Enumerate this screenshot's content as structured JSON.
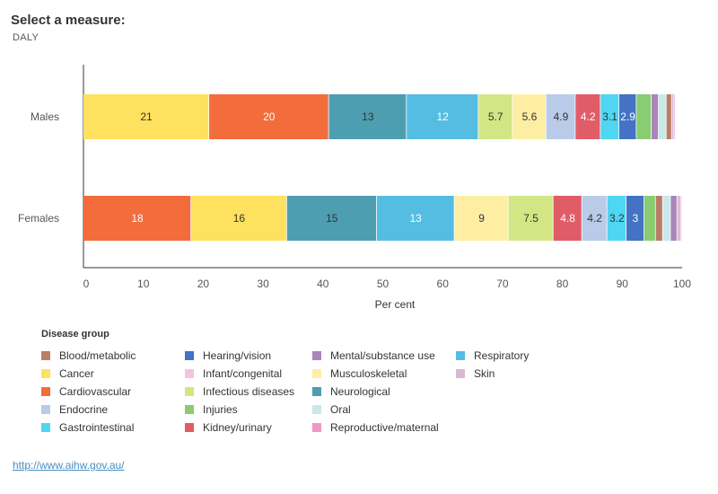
{
  "header": {
    "title": "Select a measure:",
    "measure": "DALY"
  },
  "legend": {
    "title": "Disease group",
    "items": [
      {
        "label": "Blood/metabolic",
        "color": "#b87e66"
      },
      {
        "label": "Cancer",
        "color": "#fde15f"
      },
      {
        "label": "Cardiovascular",
        "color": "#f26c3c"
      },
      {
        "label": "Endocrine",
        "color": "#b9cbe9"
      },
      {
        "label": "Gastrointestinal",
        "color": "#4fd6f2"
      },
      {
        "label": "Hearing/vision",
        "color": "#4472c4"
      },
      {
        "label": "Infant/congenital",
        "color": "#f3c4dd"
      },
      {
        "label": "Infectious diseases",
        "color": "#d2e784"
      },
      {
        "label": "Injuries",
        "color": "#89cc72"
      },
      {
        "label": "Kidney/urinary",
        "color": "#e05d68"
      },
      {
        "label": "Mental/substance use",
        "color": "#a986ba"
      },
      {
        "label": "Musculoskeletal",
        "color": "#fdeea4"
      },
      {
        "label": "Neurological",
        "color": "#4e9eb1"
      },
      {
        "label": "Oral",
        "color": "#c7e9ea"
      },
      {
        "label": "Reproductive/maternal",
        "color": "#ef98c4"
      },
      {
        "label": "Respiratory",
        "color": "#56bde2"
      },
      {
        "label": "Skin",
        "color": "#dab8d3"
      }
    ]
  },
  "footer": {
    "link": "http://www.aihw.gov.au/"
  },
  "chart_data": {
    "type": "bar",
    "orientation": "horizontal",
    "stacked": true,
    "xlabel": "Per cent",
    "xlim": [
      0,
      100
    ],
    "xticks": [
      0,
      10,
      20,
      30,
      40,
      50,
      60,
      70,
      80,
      90,
      100
    ],
    "rows": [
      {
        "label": "Males",
        "segments": [
          {
            "group": "Cancer",
            "value": 21,
            "label": "21"
          },
          {
            "group": "Cardiovascular",
            "value": 20,
            "label": "20"
          },
          {
            "group": "Neurological",
            "value": 13,
            "label": "13"
          },
          {
            "group": "Respiratory",
            "value": 12,
            "label": "12"
          },
          {
            "group": "Infectious diseases",
            "value": 5.7,
            "label": "5.7"
          },
          {
            "group": "Musculoskeletal",
            "value": 5.6,
            "label": "5.6"
          },
          {
            "group": "Endocrine",
            "value": 4.9,
            "label": "4.9"
          },
          {
            "group": "Kidney/urinary",
            "value": 4.2,
            "label": "4.2"
          },
          {
            "group": "Gastrointestinal",
            "value": 3.1,
            "label": "3.1"
          },
          {
            "group": "Hearing/vision",
            "value": 2.9,
            "label": "2.9"
          },
          {
            "group": "Injuries",
            "value": 2.5,
            "label": ""
          },
          {
            "group": "Mental/substance use",
            "value": 1.2,
            "label": ""
          },
          {
            "group": "Oral",
            "value": 1.3,
            "label": ""
          },
          {
            "group": "Blood/metabolic",
            "value": 0.9,
            "label": ""
          },
          {
            "group": "Skin",
            "value": 0.4,
            "label": ""
          },
          {
            "group": "Reproductive/maternal",
            "value": 0.2,
            "label": ""
          }
        ]
      },
      {
        "label": "Females",
        "segments": [
          {
            "group": "Cardiovascular",
            "value": 18,
            "label": "18"
          },
          {
            "group": "Cancer",
            "value": 16,
            "label": "16"
          },
          {
            "group": "Neurological",
            "value": 15,
            "label": "15"
          },
          {
            "group": "Respiratory",
            "value": 13,
            "label": "13"
          },
          {
            "group": "Musculoskeletal",
            "value": 9,
            "label": "9"
          },
          {
            "group": "Infectious diseases",
            "value": 7.5,
            "label": "7.5"
          },
          {
            "group": "Kidney/urinary",
            "value": 4.8,
            "label": "4.8"
          },
          {
            "group": "Endocrine",
            "value": 4.2,
            "label": "4.2"
          },
          {
            "group": "Gastrointestinal",
            "value": 3.2,
            "label": "3.2"
          },
          {
            "group": "Hearing/vision",
            "value": 3,
            "label": "3"
          },
          {
            "group": "Injuries",
            "value": 1.9,
            "label": ""
          },
          {
            "group": "Blood/metabolic",
            "value": 1.2,
            "label": ""
          },
          {
            "group": "Oral",
            "value": 1.3,
            "label": ""
          },
          {
            "group": "Mental/substance use",
            "value": 1.1,
            "label": ""
          },
          {
            "group": "Skin",
            "value": 0.6,
            "label": ""
          },
          {
            "group": "Reproductive/maternal",
            "value": 0.3,
            "label": ""
          }
        ]
      }
    ]
  }
}
